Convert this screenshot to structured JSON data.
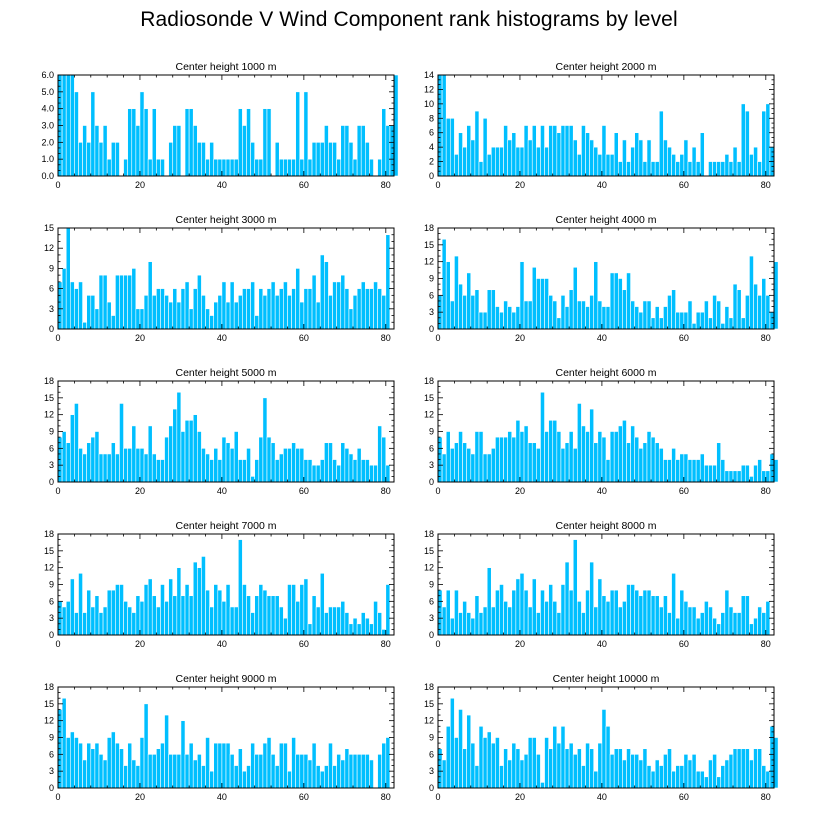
{
  "title": "Radiosonde V Wind Component rank histograms by level",
  "style": {
    "bar_color": "#00bfff",
    "bar_edge": "#ffffff",
    "axis_color": "#000000"
  },
  "chart_data": [
    {
      "type": "bar",
      "title": "Center height 1000 m",
      "xlim": [
        0,
        82
      ],
      "ylim": [
        0,
        6
      ],
      "xticks": [
        "0",
        "20",
        "40",
        "60",
        "80"
      ],
      "yticks": [
        "0.0",
        "1.0",
        "2.0",
        "3.0",
        "4.0",
        "5.0",
        "6.0"
      ],
      "values": [
        6,
        6,
        6,
        6,
        5,
        2,
        3,
        2,
        5,
        3,
        2,
        3,
        1,
        2,
        2,
        0,
        1,
        4,
        4,
        3,
        5,
        4,
        1,
        4,
        1,
        1,
        0,
        2,
        3,
        3,
        0,
        4,
        4,
        3,
        2,
        2,
        1,
        2,
        1,
        1,
        1,
        1,
        1,
        1,
        4,
        3,
        4,
        2,
        1,
        1,
        4,
        4,
        0,
        2,
        1,
        1,
        1,
        1,
        5,
        1,
        5,
        1,
        2,
        2,
        2,
        3,
        2,
        2,
        1,
        3,
        3,
        2,
        1,
        3,
        3,
        2,
        1,
        0,
        1,
        4,
        3,
        3,
        6
      ]
    },
    {
      "type": "bar",
      "title": "Center height 2000 m",
      "xlim": [
        0,
        82
      ],
      "ylim": [
        0,
        14
      ],
      "xticks": [
        "0",
        "20",
        "40",
        "60",
        "80"
      ],
      "yticks": [
        "0",
        "2",
        "4",
        "6",
        "8",
        "10",
        "12",
        "14"
      ],
      "values": [
        14,
        14,
        8,
        8,
        3,
        6,
        4,
        7,
        5,
        9,
        2,
        8,
        3,
        4,
        4,
        4,
        7,
        5,
        6,
        4,
        4,
        7,
        5,
        7,
        4,
        7,
        4,
        7,
        7,
        6,
        7,
        7,
        7,
        5,
        3,
        7,
        6,
        5,
        4,
        3,
        7,
        3,
        3,
        6,
        2,
        5,
        2,
        4,
        6,
        5,
        2,
        5,
        2,
        2,
        9,
        5,
        4,
        3,
        2,
        3,
        5,
        2,
        4,
        2,
        6,
        0,
        2,
        2,
        2,
        2,
        3,
        2,
        4,
        2,
        10,
        9,
        3,
        4,
        2,
        9,
        10,
        4
      ]
    },
    {
      "type": "bar",
      "title": "Center height 3000 m",
      "xlim": [
        0,
        82
      ],
      "ylim": [
        0,
        15
      ],
      "xticks": [
        "0",
        "20",
        "40",
        "60",
        "80"
      ],
      "yticks": [
        "0",
        "3",
        "6",
        "9",
        "12",
        "15"
      ],
      "values": [
        7,
        9,
        15,
        7,
        6,
        7,
        1,
        5,
        5,
        3,
        8,
        8,
        4,
        2,
        8,
        8,
        8,
        8,
        9,
        3,
        3,
        5,
        10,
        5,
        6,
        6,
        5,
        4,
        6,
        4,
        6,
        7,
        3,
        6,
        8,
        5,
        3,
        2,
        4,
        5,
        7,
        4,
        7,
        4,
        5,
        6,
        6,
        7,
        2,
        6,
        5,
        6,
        7,
        5,
        6,
        7,
        5,
        6,
        9,
        4,
        6,
        6,
        8,
        4,
        11,
        10,
        5,
        7,
        7,
        8,
        6,
        3,
        5,
        6,
        7,
        6,
        6,
        7,
        6,
        5,
        14
      ]
    },
    {
      "type": "bar",
      "title": "Center height 4000 m",
      "xlim": [
        0,
        82
      ],
      "ylim": [
        0,
        18
      ],
      "xticks": [
        "0",
        "20",
        "40",
        "60",
        "80"
      ],
      "yticks": [
        "0",
        "3",
        "6",
        "9",
        "12",
        "15",
        "18"
      ],
      "values": [
        6,
        16,
        12,
        5,
        13,
        8,
        6,
        10,
        6,
        7,
        3,
        3,
        7,
        7,
        4,
        3,
        5,
        4,
        3,
        4,
        12,
        5,
        5,
        11,
        9,
        9,
        9,
        6,
        5,
        2,
        6,
        4,
        7,
        11,
        5,
        5,
        4,
        6,
        12,
        5,
        4,
        4,
        10,
        10,
        9,
        7,
        10,
        5,
        4,
        3,
        5,
        5,
        2,
        4,
        2,
        4,
        6,
        7,
        3,
        3,
        3,
        5,
        1,
        3,
        3,
        5,
        2,
        6,
        5,
        1,
        4,
        2,
        8,
        7,
        2,
        6,
        13,
        8,
        6,
        9,
        6,
        3,
        12
      ]
    },
    {
      "type": "bar",
      "title": "Center height 5000 m",
      "xlim": [
        0,
        82
      ],
      "ylim": [
        0,
        18
      ],
      "xticks": [
        "0",
        "20",
        "40",
        "60",
        "80"
      ],
      "yticks": [
        "0",
        "3",
        "6",
        "9",
        "12",
        "15",
        "18"
      ],
      "values": [
        8,
        9,
        7,
        12,
        14,
        6,
        5,
        7,
        8,
        9,
        5,
        5,
        5,
        7,
        5,
        14,
        6,
        6,
        10,
        6,
        6,
        5,
        10,
        5,
        4,
        4,
        8,
        10,
        13,
        16,
        9,
        11,
        11,
        12,
        9,
        6,
        5,
        4,
        6,
        4,
        8,
        7,
        6,
        9,
        4,
        4,
        6,
        1,
        4,
        8,
        15,
        8,
        7,
        4,
        5,
        6,
        6,
        7,
        6,
        6,
        4,
        4,
        3,
        3,
        4,
        7,
        7,
        4,
        3,
        7,
        6,
        5,
        4,
        6,
        4,
        4,
        3,
        3,
        10,
        8,
        3
      ]
    },
    {
      "type": "bar",
      "title": "Center height 6000 m",
      "xlim": [
        0,
        82
      ],
      "ylim": [
        0,
        18
      ],
      "xticks": [
        "0",
        "20",
        "40",
        "60",
        "80"
      ],
      "yticks": [
        "0",
        "3",
        "6",
        "9",
        "12",
        "15",
        "18"
      ],
      "values": [
        8,
        5,
        9,
        6,
        7,
        9,
        7,
        6,
        5,
        9,
        9,
        5,
        5,
        6,
        8,
        8,
        8,
        9,
        8,
        11,
        9,
        10,
        7,
        7,
        6,
        16,
        9,
        11,
        11,
        9,
        6,
        7,
        9,
        6,
        14,
        10,
        9,
        13,
        7,
        9,
        8,
        4,
        9,
        9,
        10,
        11,
        7,
        10,
        8,
        6,
        7,
        9,
        8,
        7,
        6,
        4,
        4,
        6,
        4,
        5,
        5,
        4,
        4,
        4,
        5,
        3,
        3,
        3,
        7,
        4,
        2,
        2,
        2,
        2,
        3,
        3,
        1,
        3,
        4,
        2,
        2,
        5,
        4
      ]
    },
    {
      "type": "bar",
      "title": "Center height 7000 m",
      "xlim": [
        0,
        82
      ],
      "ylim": [
        0,
        18
      ],
      "xticks": [
        "0",
        "20",
        "40",
        "60",
        "80"
      ],
      "yticks": [
        "0",
        "3",
        "6",
        "9",
        "12",
        "15",
        "18"
      ],
      "values": [
        6,
        5,
        6,
        10,
        4,
        11,
        4,
        8,
        5,
        7,
        4,
        5,
        8,
        8,
        9,
        9,
        6,
        5,
        4,
        7,
        6,
        9,
        10,
        7,
        5,
        9,
        6,
        10,
        7,
        12,
        7,
        9,
        7,
        13,
        12,
        14,
        8,
        5,
        9,
        8,
        6,
        9,
        5,
        5,
        17,
        9,
        7,
        4,
        7,
        9,
        8,
        7,
        7,
        7,
        5,
        3,
        9,
        9,
        6,
        9,
        10,
        2,
        7,
        5,
        11,
        4,
        5,
        5,
        5,
        6,
        4,
        2,
        3,
        2,
        4,
        3,
        2,
        6,
        4,
        1,
        9
      ]
    },
    {
      "type": "bar",
      "title": "Center height 8000 m",
      "xlim": [
        0,
        82
      ],
      "ylim": [
        0,
        18
      ],
      "xticks": [
        "0",
        "20",
        "40",
        "60",
        "80"
      ],
      "yticks": [
        "0",
        "3",
        "6",
        "9",
        "12",
        "15",
        "18"
      ],
      "values": [
        8,
        5,
        8,
        3,
        8,
        4,
        6,
        4,
        3,
        7,
        4,
        5,
        12,
        5,
        8,
        9,
        6,
        5,
        8,
        10,
        11,
        8,
        5,
        10,
        4,
        8,
        6,
        9,
        6,
        4,
        9,
        13,
        8,
        17,
        6,
        4,
        8,
        13,
        5,
        10,
        7,
        6,
        8,
        8,
        5,
        6,
        9,
        9,
        8,
        7,
        8,
        8,
        7,
        7,
        5,
        7,
        4,
        11,
        3,
        8,
        6,
        5,
        5,
        3,
        4,
        6,
        5,
        3,
        2,
        4,
        8,
        5,
        4,
        4,
        7,
        7,
        2,
        3,
        5,
        4,
        6
      ]
    },
    {
      "type": "bar",
      "title": "Center height 9000 m",
      "xlim": [
        0,
        82
      ],
      "ylim": [
        0,
        18
      ],
      "xticks": [
        "0",
        "20",
        "40",
        "60",
        "80"
      ],
      "yticks": [
        "0",
        "3",
        "6",
        "9",
        "12",
        "15",
        "18"
      ],
      "values": [
        14,
        16,
        9,
        10,
        9,
        8,
        5,
        8,
        7,
        8,
        6,
        5,
        9,
        10,
        8,
        7,
        4,
        8,
        5,
        4,
        9,
        15,
        6,
        6,
        7,
        8,
        13,
        6,
        6,
        6,
        12,
        6,
        8,
        5,
        6,
        4,
        9,
        3,
        8,
        8,
        8,
        8,
        6,
        4,
        7,
        3,
        4,
        8,
        6,
        6,
        8,
        9,
        6,
        4,
        8,
        8,
        3,
        9,
        6,
        6,
        6,
        5,
        8,
        4,
        3,
        4,
        8,
        4,
        6,
        5,
        7,
        6,
        6,
        6,
        6,
        6,
        5,
        0,
        6,
        8,
        9
      ]
    },
    {
      "type": "bar",
      "title": "Center height 10000 m",
      "xlim": [
        0,
        82
      ],
      "ylim": [
        0,
        18
      ],
      "xticks": [
        "0",
        "20",
        "40",
        "60",
        "80"
      ],
      "yticks": [
        "0",
        "3",
        "6",
        "9",
        "12",
        "15",
        "18"
      ],
      "values": [
        7,
        5,
        11,
        16,
        9,
        14,
        7,
        13,
        8,
        4,
        11,
        9,
        10,
        8,
        9,
        4,
        7,
        5,
        8,
        7,
        5,
        6,
        9,
        9,
        6,
        1,
        9,
        7,
        11,
        8,
        11,
        7,
        8,
        6,
        7,
        4,
        8,
        7,
        3,
        8,
        14,
        11,
        6,
        7,
        7,
        5,
        7,
        6,
        6,
        5,
        7,
        4,
        3,
        5,
        4,
        6,
        7,
        3,
        4,
        4,
        6,
        5,
        6,
        3,
        3,
        2,
        5,
        6,
        2,
        4,
        5,
        6,
        7,
        7,
        7,
        7,
        5,
        7,
        7,
        4,
        3,
        11,
        9
      ]
    }
  ]
}
